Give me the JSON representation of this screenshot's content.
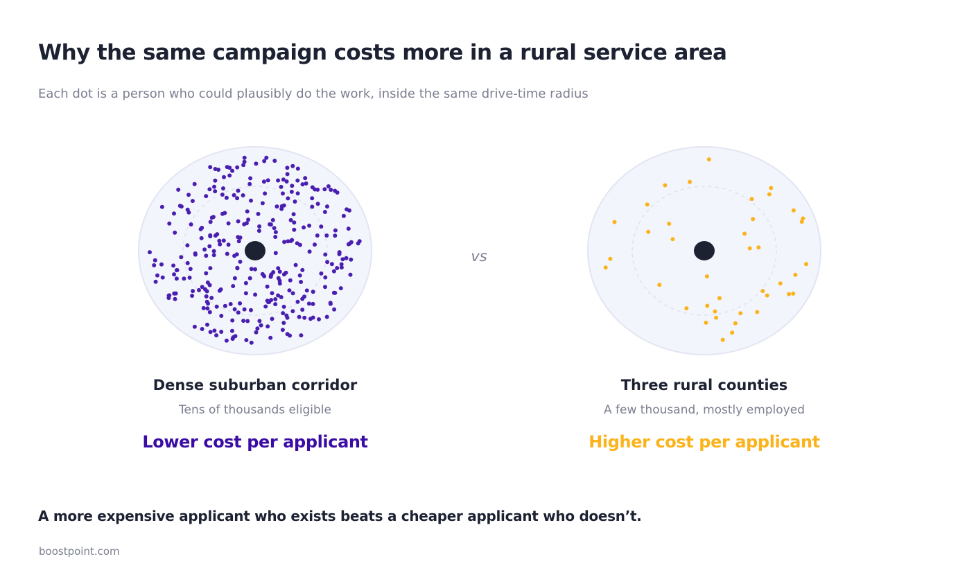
{
  "header": {
    "title": "Why the same campaign costs more in a rural service area",
    "subtitle": "Each dot is a person who could plausibly do the work, inside the same drive-time radius"
  },
  "comparison": {
    "vs_label": "vs",
    "left": {
      "title": "Dense suburban corridor",
      "caption": "Tens of thousands eligible",
      "verdict": "Lower cost per applicant",
      "dot_color": "#4a1fb0",
      "verdict_color": "#3a0ca3",
      "dot_count": 320
    },
    "right": {
      "title": "Three rural counties",
      "caption": "A few thousand, mostly employed",
      "verdict": "Higher cost per applicant",
      "dot_color": "#fbb31b",
      "verdict_color": "#fbb31b",
      "dot_count": 40
    },
    "colors": {
      "field_fill": "#f3f5fc",
      "field_stroke": "#e2e5f2",
      "inner_ring": "#dfe2ee",
      "center_marker": "#1d2233"
    }
  },
  "takeaway": "A more expensive applicant who exists beats a cheaper applicant who doesn’t.",
  "footer": "boostpoint.com"
}
